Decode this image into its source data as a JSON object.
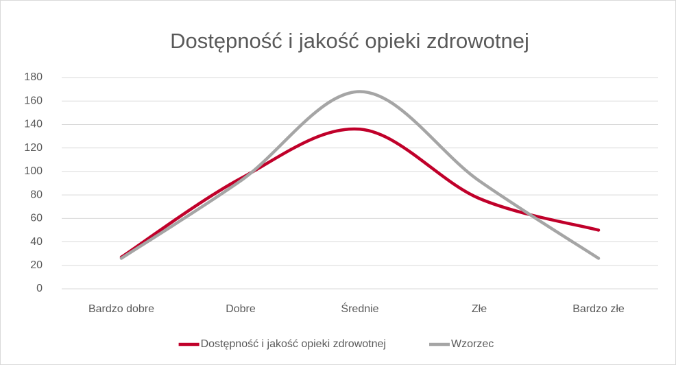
{
  "chart_data": {
    "type": "line",
    "title": "Dostępność i jakość opieki zdrowotnej",
    "categories": [
      "Bardzo dobre",
      "Dobre",
      "Średnie",
      "Złe",
      "Bardzo złe"
    ],
    "series": [
      {
        "name": "Dostępność i jakość opieki zdrowotnej",
        "color": "#c0002a",
        "values": [
          27,
          94,
          136,
          77,
          50
        ]
      },
      {
        "name": "Wzorzec",
        "color": "#a5a5a5",
        "values": [
          26,
          92,
          168,
          92,
          26
        ]
      }
    ],
    "ylim": [
      0,
      180
    ],
    "yticks": [
      0,
      20,
      40,
      60,
      80,
      100,
      120,
      140,
      160,
      180
    ],
    "grid": true,
    "smooth": true,
    "legend": "bottom"
  }
}
